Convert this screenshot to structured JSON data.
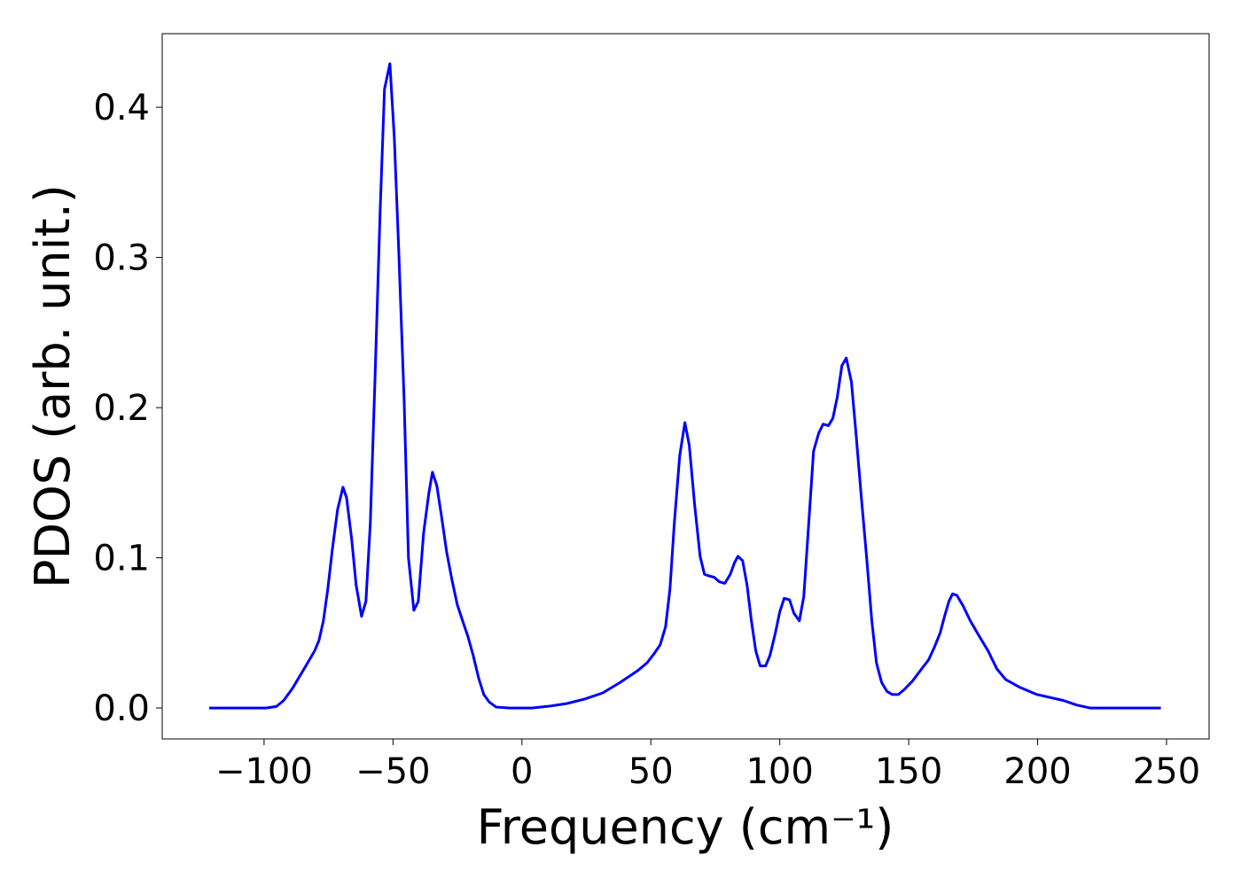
{
  "chart_data": {
    "type": "line",
    "xlabel": "Frequency (cm⁻¹)",
    "ylabel": "PDOS (arb. unit.)",
    "xlim": [
      -139.5,
      266.5
    ],
    "ylim": [
      -0.0206,
      0.449
    ],
    "xticks": [
      {
        "value": -100,
        "label": "−100"
      },
      {
        "value": -50,
        "label": "−50"
      },
      0,
      50,
      100,
      150,
      200,
      250
    ],
    "yticks": [
      {
        "value": 0,
        "label": "0.0"
      },
      0.1,
      0.2,
      0.3,
      0.4
    ],
    "grid": false,
    "x": [
      -121.3,
      -99.3,
      -95.2,
      -92.4,
      -89,
      -83.8,
      -80.4,
      -78.7,
      -77,
      -75.3,
      -73.5,
      -71.5,
      -69.4,
      -68,
      -66,
      -64.3,
      -62.2,
      -60.5,
      -58.8,
      -57,
      -55,
      -53.3,
      -51.2,
      -49.5,
      -47.8,
      -45.7,
      -44,
      -41.9,
      -40.2,
      -38.1,
      -36.1,
      -34.7,
      -33,
      -31.3,
      -29.2,
      -27.1,
      -25.1,
      -23,
      -21,
      -18.9,
      -16.8,
      -14.8,
      -12.7,
      -10,
      -4.8,
      3.8,
      10.7,
      17.5,
      24.4,
      31.3,
      38.1,
      45,
      48.5,
      51.2,
      53.6,
      55.7,
      57.4,
      59.1,
      61.2,
      63.2,
      64.9,
      67,
      69.1,
      70.8,
      72.5,
      74.6,
      76.6,
      78.7,
      80.8,
      82.5,
      83.8,
      85.6,
      87.3,
      89,
      90.7,
      92.4,
      94.5,
      96.2,
      98.3,
      100,
      101.7,
      103.8,
      105.5,
      107.6,
      109.3,
      111,
      113.1,
      115.1,
      116.8,
      118.9,
      120.6,
      122.3,
      124.1,
      125.8,
      127.8,
      129.6,
      131.6,
      133.7,
      135.7,
      137.5,
      139.5,
      141.6,
      143.6,
      146,
      148.1,
      151.5,
      155,
      157.7,
      160.1,
      162.2,
      163.9,
      165.6,
      167,
      168.7,
      171.1,
      173.9,
      177.3,
      180.8,
      184.2,
      187.6,
      192.8,
      199.7,
      210,
      215.1,
      220.3,
      230.6,
      247.8
    ],
    "series": [
      {
        "name": "PDOS",
        "color": "#0000ff",
        "values": [
          0,
          0,
          0.001,
          0.005,
          0.013,
          0.028,
          0.038,
          0.045,
          0.058,
          0.079,
          0.106,
          0.132,
          0.147,
          0.14,
          0.112,
          0.082,
          0.061,
          0.071,
          0.123,
          0.218,
          0.33,
          0.412,
          0.429,
          0.38,
          0.306,
          0.206,
          0.1,
          0.065,
          0.071,
          0.117,
          0.143,
          0.157,
          0.148,
          0.129,
          0.104,
          0.085,
          0.069,
          0.058,
          0.048,
          0.035,
          0.02,
          0.009,
          0.004,
          0.0006,
          0,
          0,
          0.0012,
          0.003,
          0.006,
          0.01,
          0.017,
          0.025,
          0.03,
          0.036,
          0.042,
          0.054,
          0.079,
          0.123,
          0.168,
          0.19,
          0.175,
          0.135,
          0.101,
          0.089,
          0.088,
          0.087,
          0.084,
          0.083,
          0.089,
          0.097,
          0.101,
          0.098,
          0.082,
          0.058,
          0.038,
          0.028,
          0.028,
          0.035,
          0.05,
          0.064,
          0.073,
          0.072,
          0.063,
          0.058,
          0.074,
          0.117,
          0.171,
          0.183,
          0.189,
          0.188,
          0.193,
          0.207,
          0.228,
          0.233,
          0.217,
          0.182,
          0.141,
          0.1,
          0.058,
          0.03,
          0.017,
          0.011,
          0.009,
          0.009,
          0.012,
          0.018,
          0.026,
          0.032,
          0.041,
          0.05,
          0.061,
          0.071,
          0.076,
          0.075,
          0.068,
          0.058,
          0.048,
          0.038,
          0.026,
          0.019,
          0.014,
          0.009,
          0.005,
          0.002,
          0,
          0,
          0
        ]
      }
    ]
  }
}
